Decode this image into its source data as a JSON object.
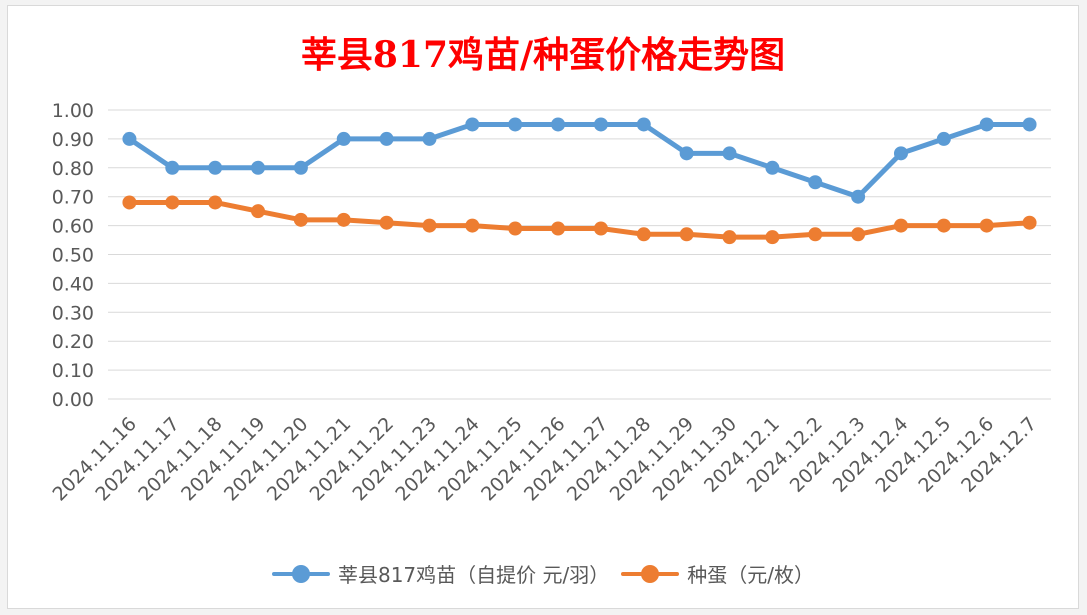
{
  "chart_data": {
    "type": "line",
    "title": "莘县817鸡苗/种蛋价格走势图",
    "categories": [
      "2024.11.16",
      "2024.11.17",
      "2024.11.18",
      "2024.11.19",
      "2024.11.20",
      "2024.11.21",
      "2024.11.22",
      "2024.11.23",
      "2024.11.24",
      "2024.11.25",
      "2024.11.26",
      "2024.11.27",
      "2024.11.28",
      "2024.11.29",
      "2024.11.30",
      "2024.12.1",
      "2024.12.2",
      "2024.12.3",
      "2024.12.4",
      "2024.12.5",
      "2024.12.6",
      "2024.12.7"
    ],
    "series": [
      {
        "name": "莘县817鸡苗（自提价 元/羽）",
        "color": "#5b9bd5",
        "values": [
          0.9,
          0.8,
          0.8,
          0.8,
          0.8,
          0.9,
          0.9,
          0.9,
          0.95,
          0.95,
          0.95,
          0.95,
          0.95,
          0.85,
          0.85,
          0.8,
          0.75,
          0.7,
          0.85,
          0.9,
          0.95,
          0.95
        ]
      },
      {
        "name": "种蛋（元/枚）",
        "color": "#ed7d31",
        "values": [
          0.68,
          0.68,
          0.68,
          0.65,
          0.62,
          0.62,
          0.61,
          0.6,
          0.6,
          0.59,
          0.59,
          0.59,
          0.57,
          0.57,
          0.56,
          0.56,
          0.57,
          0.57,
          0.6,
          0.6,
          0.6,
          0.61
        ]
      }
    ],
    "ylim": [
      0.0,
      1.0
    ],
    "yticks": [
      "0.00",
      "0.10",
      "0.20",
      "0.30",
      "0.40",
      "0.50",
      "0.60",
      "0.70",
      "0.80",
      "0.90",
      "1.00"
    ],
    "grid": true,
    "legend_position": "bottom",
    "title_color": "#ff0000"
  }
}
